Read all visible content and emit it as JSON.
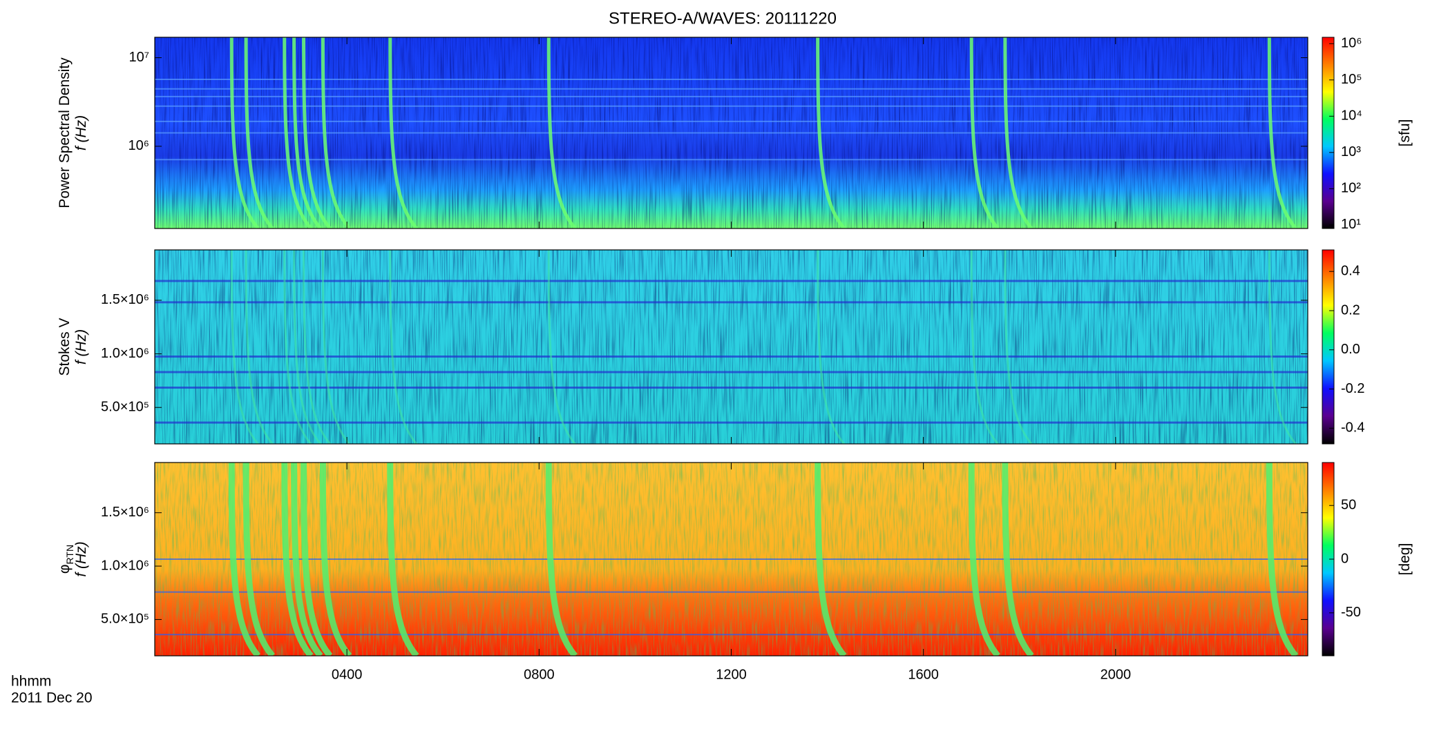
{
  "colormap": [
    "#000000",
    "#5a0090",
    "#1010ff",
    "#00c8ff",
    "#00ff60",
    "#ffff00",
    "#ff8000",
    "#ff0000"
  ],
  "chart_data": [
    {
      "type": "heatmap",
      "title": "STEREO-A/WAVES: 20111220",
      "ylabel": "Power Spectral Density",
      "ylabel2": "f (Hz)",
      "ylog": true,
      "ylim": [
        118000,
        17000000
      ],
      "yticks": [
        {
          "value": 1000000,
          "label": "10⁶"
        },
        {
          "value": 10000000,
          "label": "10⁷"
        }
      ],
      "colorbar": {
        "label": "[sfu]",
        "log": true,
        "lim": [
          8,
          1500000
        ],
        "ticks": [
          {
            "value": 10,
            "label": "10¹"
          },
          {
            "value": 100,
            "label": "10²"
          },
          {
            "value": 1000,
            "label": "10³"
          },
          {
            "value": 10000,
            "label": "10⁴"
          },
          {
            "value": 100000,
            "label": "10⁵"
          },
          {
            "value": 1000000,
            "label": "10⁶"
          }
        ]
      },
      "burst_color": "#6dff70",
      "bursts": [
        1.6,
        1.9,
        2.7,
        2.9,
        3.1,
        3.5,
        4.9,
        8.2,
        13.8,
        17.0,
        17.7,
        23.2
      ]
    },
    {
      "type": "heatmap",
      "ylabel": "Stokes V",
      "ylabel2": "f (Hz)",
      "ylog": false,
      "ylim": [
        160000,
        1970000
      ],
      "yticks": [
        {
          "value": 500000,
          "label": "5.0×10⁵"
        },
        {
          "value": 1000000,
          "label": "1.0×10⁶"
        },
        {
          "value": 1500000,
          "label": "1.5×10⁶"
        }
      ],
      "colorbar": {
        "log": false,
        "lim": [
          -0.48,
          0.51
        ],
        "ticks": [
          {
            "value": -0.4,
            "label": "-0.4"
          },
          {
            "value": -0.2,
            "label": "-0.2"
          },
          {
            "value": 0,
            "label": "0.0"
          },
          0.2,
          0.4
        ]
      },
      "burst_color": "#40e8a0"
    },
    {
      "type": "heatmap",
      "ylabel": "φ",
      "ylabel_sub": "RTN",
      "ylabel2": "f (Hz)",
      "ylog": false,
      "ylim": [
        160000,
        1970000
      ],
      "yticks": [
        {
          "value": 500000,
          "label": "5.0×10⁵"
        },
        {
          "value": 1000000,
          "label": "1.0×10⁶"
        },
        {
          "value": 1500000,
          "label": "1.5×10⁶"
        }
      ],
      "colorbar": {
        "label": "[deg]",
        "log": false,
        "lim": [
          -90,
          90
        ],
        "ticks": [
          -50,
          0,
          50
        ]
      },
      "burst_color": "#50f070",
      "xlabel": "hhmm",
      "date": "2011 Dec 20",
      "xlim": [
        0,
        24
      ],
      "xticks": [
        {
          "value": 4,
          "label": "0400"
        },
        {
          "value": 8,
          "label": "0800"
        },
        {
          "value": 12,
          "label": "1200"
        },
        {
          "value": 16,
          "label": "1600"
        },
        {
          "value": 20,
          "label": "2000"
        }
      ]
    }
  ]
}
